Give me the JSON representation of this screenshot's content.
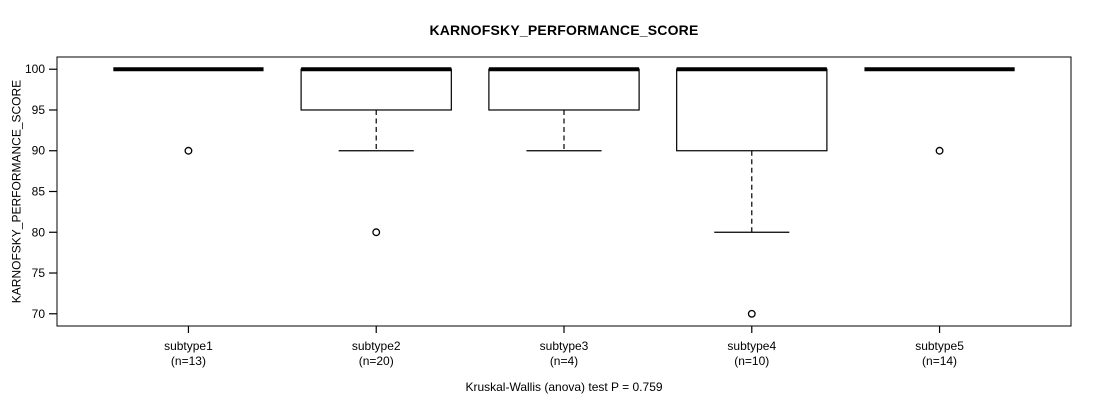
{
  "chart_data": {
    "type": "boxplot",
    "title": "KARNOFSKY_PERFORMANCE_SCORE",
    "ylabel": "KARNOFSKY_PERFORMANCE_SCORE",
    "xlabel": "",
    "caption": "Kruskal-Wallis (anova) test P = 0.759",
    "statistical_test": {
      "name": "Kruskal-Wallis (anova) test",
      "p_value": 0.759
    },
    "y_ticks": [
      100,
      95,
      90,
      85,
      80,
      75,
      70
    ],
    "ylim": [
      68.5,
      101.5
    ],
    "grid": false,
    "legend": false,
    "categories": [
      "subtype1",
      "subtype2",
      "subtype3",
      "subtype4",
      "subtype5"
    ],
    "series": [
      {
        "label": "subtype1",
        "sublabel": "(n=13)",
        "n": 13,
        "q1": 100,
        "median": 100,
        "q3": 100,
        "whisker_low": 100,
        "whisker_high": 100,
        "outliers": [
          90
        ]
      },
      {
        "label": "subtype2",
        "sublabel": "(n=20)",
        "n": 20,
        "q1": 95,
        "median": 100,
        "q3": 100,
        "whisker_low": 90,
        "whisker_high": 100,
        "outliers": [
          80
        ]
      },
      {
        "label": "subtype3",
        "sublabel": "(n=4)",
        "n": 4,
        "q1": 95,
        "median": 100,
        "q3": 100,
        "whisker_low": 90,
        "whisker_high": 100,
        "outliers": []
      },
      {
        "label": "subtype4",
        "sublabel": "(n=10)",
        "n": 10,
        "q1": 90,
        "median": 100,
        "q3": 100,
        "whisker_low": 80,
        "whisker_high": 100,
        "outliers": [
          70
        ]
      },
      {
        "label": "subtype5",
        "sublabel": "(n=14)",
        "n": 14,
        "q1": 100,
        "median": 100,
        "q3": 100,
        "whisker_low": 100,
        "whisker_high": 100,
        "outliers": [
          90
        ]
      }
    ],
    "colors": {
      "line": "#000000",
      "box_fill": "#ffffff",
      "background": "#ffffff"
    }
  }
}
